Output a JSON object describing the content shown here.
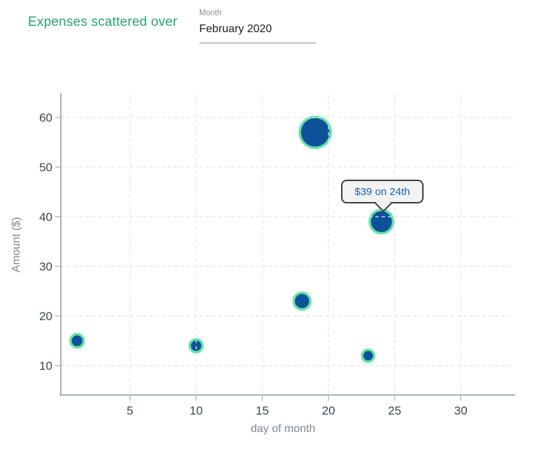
{
  "header": {
    "title": "Expenses scattered over",
    "month_field": {
      "label": "Month",
      "value": "February 2020"
    }
  },
  "tooltip": {
    "text": "$39 on 24th",
    "attached_to_day": 24
  },
  "colors": {
    "title_green": "#26a66b",
    "bubble_fill": "#0d519a",
    "bubble_ring": "#63e3a3",
    "grid_line": "#e4e4e4",
    "axis_line": "#a3b2bb",
    "tick_mark": "#b5c2c9",
    "tick_label": "#37474f",
    "axis_title": "#80888f",
    "tooltip_text": "#1565b5",
    "tooltip_bg": "#f3f3f3",
    "tooltip_border": "#3d3d3d"
  },
  "chart_data": {
    "type": "scatter",
    "title": "Expenses scattered over",
    "xlabel": "day of month",
    "ylabel": "Amount ($)",
    "x_ticks": [
      5,
      10,
      15,
      20,
      25,
      30
    ],
    "y_ticks": [
      10,
      20,
      30,
      40,
      50,
      60
    ],
    "xlim": [
      -0.2,
      34.1
    ],
    "ylim": [
      4,
      64.6
    ],
    "grid": "dashed, drawn over data points",
    "legend": "none",
    "size_encoding": "bubble radius proportional to amount",
    "points": [
      {
        "day": 1,
        "amount": 15
      },
      {
        "day": 10,
        "amount": 14
      },
      {
        "day": 18,
        "amount": 23
      },
      {
        "day": 19,
        "amount": 57
      },
      {
        "day": 23,
        "amount": 12
      },
      {
        "day": 24,
        "amount": 39
      }
    ]
  }
}
